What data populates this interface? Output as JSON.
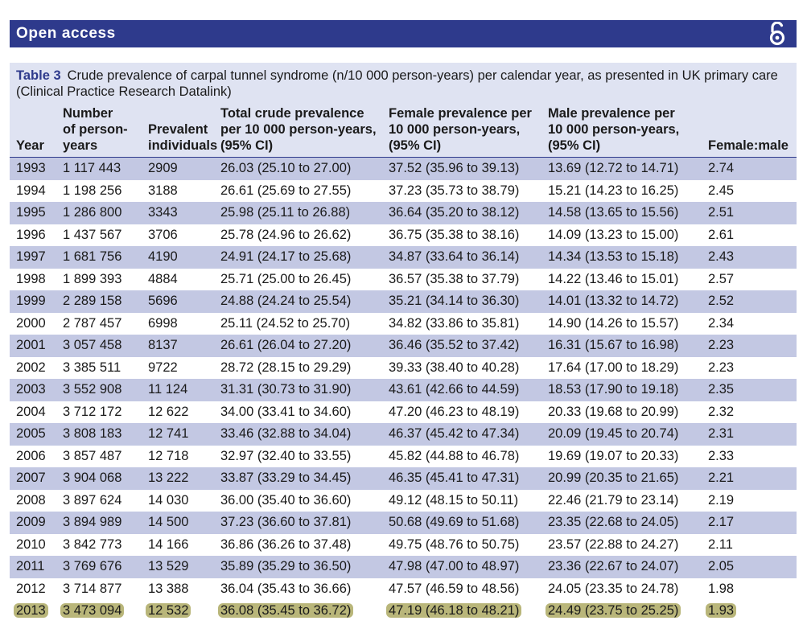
{
  "banner": {
    "title": "Open access",
    "icon": "open-access-lock-icon"
  },
  "table": {
    "label": "Table 3",
    "caption": "Crude prevalence of carpal tunnel syndrome (n/10 000 person-years) per calendar year, as presented in UK primary care (Clinical Practice Research Datalink)",
    "headers": {
      "year": "Year",
      "person": [
        "Number",
        "of person-",
        "years"
      ],
      "prevalent": [
        "Prevalent",
        "individuals"
      ],
      "total": [
        "Total crude prevalence",
        "per 10 000 person-years,",
        "(95% CI)"
      ],
      "female": [
        "Female prevalence per",
        "10 000 person-years,",
        "(95% CI)"
      ],
      "male": [
        "Male prevalence per",
        "10 000 person-years,",
        "(95% CI)"
      ],
      "ratio": "Female:male"
    },
    "rows": [
      [
        "1993",
        "1 117 443",
        "2909",
        "26.03 (25.10 to 27.00)",
        "37.52 (35.96 to 39.13)",
        "13.69 (12.72 to 14.71)",
        "2.74"
      ],
      [
        "1994",
        "1 198 256",
        "3188",
        "26.61 (25.69 to 27.55)",
        "37.23 (35.73 to 38.79)",
        "15.21 (14.23 to 16.25)",
        "2.45"
      ],
      [
        "1995",
        "1 286 800",
        "3343",
        "25.98 (25.11 to 26.88)",
        "36.64 (35.20 to 38.12)",
        "14.58 (13.65 to 15.56)",
        "2.51"
      ],
      [
        "1996",
        "1 437 567",
        "3706",
        "25.78 (24.96 to 26.62)",
        "36.75 (35.38 to 38.16)",
        "14.09 (13.23 to 15.00)",
        "2.61"
      ],
      [
        "1997",
        "1 681 756",
        "4190",
        "24.91 (24.17 to 25.68)",
        "34.87 (33.64 to 36.14)",
        "14.34 (13.53 to 15.18)",
        "2.43"
      ],
      [
        "1998",
        "1 899 393",
        "4884",
        "25.71 (25.00 to 26.45)",
        "36.57 (35.38 to 37.79)",
        "14.22 (13.46 to 15.01)",
        "2.57"
      ],
      [
        "1999",
        "2 289 158",
        "5696",
        "24.88 (24.24 to 25.54)",
        "35.21 (34.14 to 36.30)",
        "14.01 (13.32 to 14.72)",
        "2.52"
      ],
      [
        "2000",
        "2 787 457",
        "6998",
        "25.11 (24.52 to 25.70)",
        "34.82 (33.86 to 35.81)",
        "14.90 (14.26 to 15.57)",
        "2.34"
      ],
      [
        "2001",
        "3 057 458",
        "8137",
        "26.61 (26.04 to 27.20)",
        "36.46 (35.52 to 37.42)",
        "16.31 (15.67 to 16.98)",
        "2.23"
      ],
      [
        "2002",
        "3 385 511",
        "9722",
        "28.72 (28.15 to 29.29)",
        "39.33 (38.40 to 40.28)",
        "17.64 (17.00 to 18.29)",
        "2.23"
      ],
      [
        "2003",
        "3 552 908",
        "11 124",
        "31.31 (30.73 to 31.90)",
        "43.61 (42.66 to 44.59)",
        "18.53 (17.90 to 19.18)",
        "2.35"
      ],
      [
        "2004",
        "3 712 172",
        "12 622",
        "34.00 (33.41 to 34.60)",
        "47.20 (46.23 to 48.19)",
        "20.33 (19.68 to 20.99)",
        "2.32"
      ],
      [
        "2005",
        "3 808 183",
        "12 741",
        "33.46 (32.88 to 34.04)",
        "46.37 (45.42 to 47.34)",
        "20.09 (19.45 to 20.74)",
        "2.31"
      ],
      [
        "2006",
        "3 857 487",
        "12 718",
        "32.97 (32.40 to 33.55)",
        "45.82 (44.88 to 46.78)",
        "19.69 (19.07 to 20.33)",
        "2.33"
      ],
      [
        "2007",
        "3 904 068",
        "13 222",
        "33.87 (33.29 to 34.45)",
        "46.35 (45.41 to 47.31)",
        "20.99 (20.35 to 21.65)",
        "2.21"
      ],
      [
        "2008",
        "3 897 624",
        "14 030",
        "36.00 (35.40 to 36.60)",
        "49.12 (48.15 to 50.11)",
        "22.46 (21.79 to 23.14)",
        "2.19"
      ],
      [
        "2009",
        "3 894 989",
        "14 500",
        "37.23 (36.60 to 37.81)",
        "50.68 (49.69 to 51.68)",
        "23.35 (22.68 to 24.05)",
        "2.17"
      ],
      [
        "2010",
        "3 842 773",
        "14 166",
        "36.86 (36.26 to 37.48)",
        "49.75 (48.76 to 50.75)",
        "23.57 (22.88 to 24.27)",
        "2.11"
      ],
      [
        "2011",
        "3 769 676",
        "13 529",
        "35.89 (35.29 to 36.50)",
        "47.98 (47.00 to 48.97)",
        "23.36 (22.67 to 24.07)",
        "2.05"
      ],
      [
        "2012",
        "3 714 877",
        "13 388",
        "36.04 (35.43 to 36.66)",
        "47.57 (46.59 to 48.56)",
        "24.05 (23.35 to 24.78)",
        "1.98"
      ],
      [
        "2013",
        "3 473 094",
        "12 532",
        "36.08 (35.45 to 36.72)",
        "47.19 (46.18 to 48.21)",
        "24.49 (23.75 to 25.25)",
        "1.93"
      ]
    ]
  },
  "colors": {
    "banner": "#2e3a8c",
    "caption_bg": "#dfe3f2",
    "row_shade": "#c3c8e3",
    "highlight": "#b9b67a"
  }
}
